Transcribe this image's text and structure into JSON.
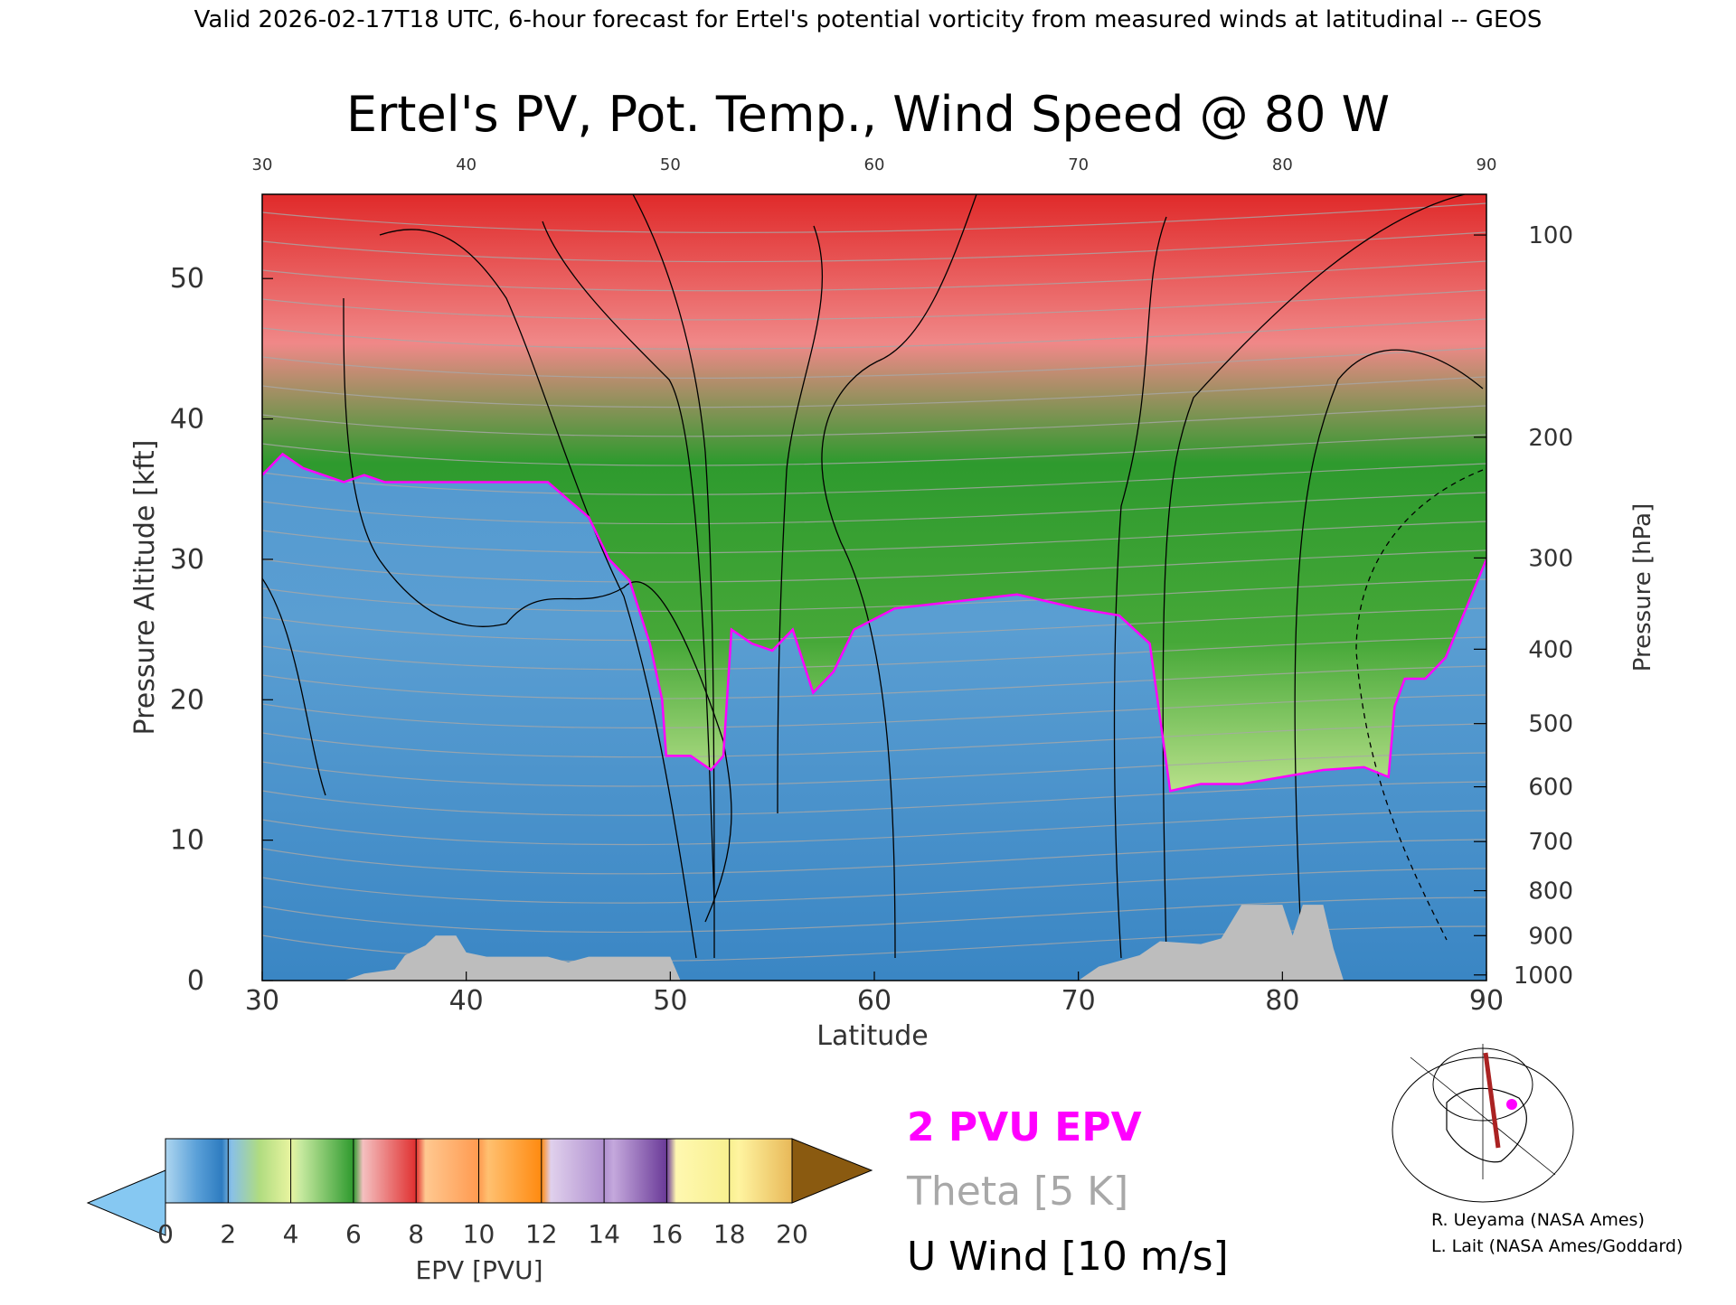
{
  "header": {
    "valid_line": "Valid 2026-02-17T18 UTC, 6-hour forecast for Ertel's potential vorticity from measured winds at latitudinal -- GEOS"
  },
  "chart_data": {
    "type": "heatmap",
    "title": "Ertel's PV, Pot. Temp., Wind Speed @ 80 W",
    "xlabel": "Latitude",
    "ylabel": "Pressure Altitude [kft]",
    "y2label": "Pressure [hPa]",
    "xlim": [
      30,
      90
    ],
    "ylim": [
      0,
      56
    ],
    "x_ticks": [
      "30",
      "40",
      "50",
      "60",
      "70",
      "80",
      "90"
    ],
    "top_ticks": [
      "30",
      "40",
      "50",
      "60",
      "70",
      "80",
      "90"
    ],
    "y_ticks": [
      "0",
      "10",
      "20",
      "30",
      "40",
      "50"
    ],
    "pressure_ticks": [
      {
        "label": "1000",
        "kft": 0.4
      },
      {
        "label": "900",
        "kft": 3.2
      },
      {
        "label": "800",
        "kft": 6.4
      },
      {
        "label": "700",
        "kft": 9.9
      },
      {
        "label": "600",
        "kft": 13.8
      },
      {
        "label": "500",
        "kft": 18.3
      },
      {
        "label": "400",
        "kft": 23.6
      },
      {
        "label": "300",
        "kft": 30.1
      },
      {
        "label": "200",
        "kft": 38.7
      },
      {
        "label": "100",
        "kft": 53.1
      }
    ],
    "tropopause_2pvu_kft": [
      [
        30,
        36
      ],
      [
        31,
        37.5
      ],
      [
        32,
        36.5
      ],
      [
        33,
        36
      ],
      [
        34,
        35.5
      ],
      [
        35,
        36
      ],
      [
        36,
        35.5
      ],
      [
        38,
        35.5
      ],
      [
        40,
        35.5
      ],
      [
        42,
        35.5
      ],
      [
        44,
        35.5
      ],
      [
        46,
        33
      ],
      [
        47,
        30
      ],
      [
        48,
        28.5
      ],
      [
        49,
        24
      ],
      [
        49.6,
        20
      ],
      [
        49.8,
        16
      ],
      [
        51,
        16
      ],
      [
        52,
        15
      ],
      [
        52.6,
        16
      ],
      [
        53,
        25
      ],
      [
        54,
        24
      ],
      [
        55,
        23.5
      ],
      [
        56,
        25
      ],
      [
        57,
        20.5
      ],
      [
        58,
        22
      ],
      [
        59,
        25
      ],
      [
        61,
        26.5
      ],
      [
        64,
        27
      ],
      [
        67,
        27.5
      ],
      [
        70,
        26.5
      ],
      [
        72,
        26
      ],
      [
        73.5,
        24
      ],
      [
        74.5,
        13.5
      ],
      [
        76,
        14
      ],
      [
        78,
        14
      ],
      [
        80,
        14.5
      ],
      [
        82,
        15
      ],
      [
        84,
        15.2
      ],
      [
        85.2,
        14.5
      ],
      [
        85.5,
        19.5
      ],
      [
        86,
        21.5
      ],
      [
        87,
        21.5
      ],
      [
        88,
        23
      ],
      [
        89,
        26.5
      ],
      [
        90,
        30
      ]
    ],
    "terrain_kft": [
      [
        34,
        0
      ],
      [
        35,
        0.5
      ],
      [
        36.5,
        0.8
      ],
      [
        37,
        1.8
      ],
      [
        38,
        2.5
      ],
      [
        38.5,
        3.2
      ],
      [
        39.5,
        3.2
      ],
      [
        40,
        2
      ],
      [
        41,
        1.7
      ],
      [
        44,
        1.7
      ],
      [
        45,
        1.3
      ],
      [
        46,
        1.7
      ],
      [
        50,
        1.7
      ],
      [
        50.5,
        0
      ],
      [
        70,
        0
      ],
      [
        71,
        1
      ],
      [
        73,
        1.8
      ],
      [
        74,
        2.8
      ],
      [
        76,
        2.6
      ],
      [
        77,
        3
      ],
      [
        78,
        5.4
      ],
      [
        80,
        5.4
      ],
      [
        80.5,
        3.2
      ],
      [
        81,
        5.4
      ],
      [
        82,
        5.4
      ],
      [
        82.5,
        2.3
      ],
      [
        83,
        0
      ]
    ],
    "colorbar": {
      "label": "EPV [PVU]",
      "ticks": [
        "0",
        "2",
        "4",
        "6",
        "8",
        "10",
        "12",
        "14",
        "16",
        "18",
        "20"
      ],
      "min": 0,
      "max": 20,
      "under_color": "#86c8f2",
      "over_color": "#8a5a10"
    },
    "legend": [
      {
        "label": "2 PVU EPV",
        "color": "#ff00ff"
      },
      {
        "label": "Theta [5 K]",
        "color": "#a8a8a8"
      },
      {
        "label": "U Wind [10 m/s]",
        "color": "#000000"
      }
    ],
    "inset_map": {
      "marker_color": "#ff00ff",
      "track_color": "#aa2222"
    },
    "credits": [
      "R. Ueyama (NASA Ames)",
      "L. Lait (NASA Ames/Goddard)"
    ]
  }
}
